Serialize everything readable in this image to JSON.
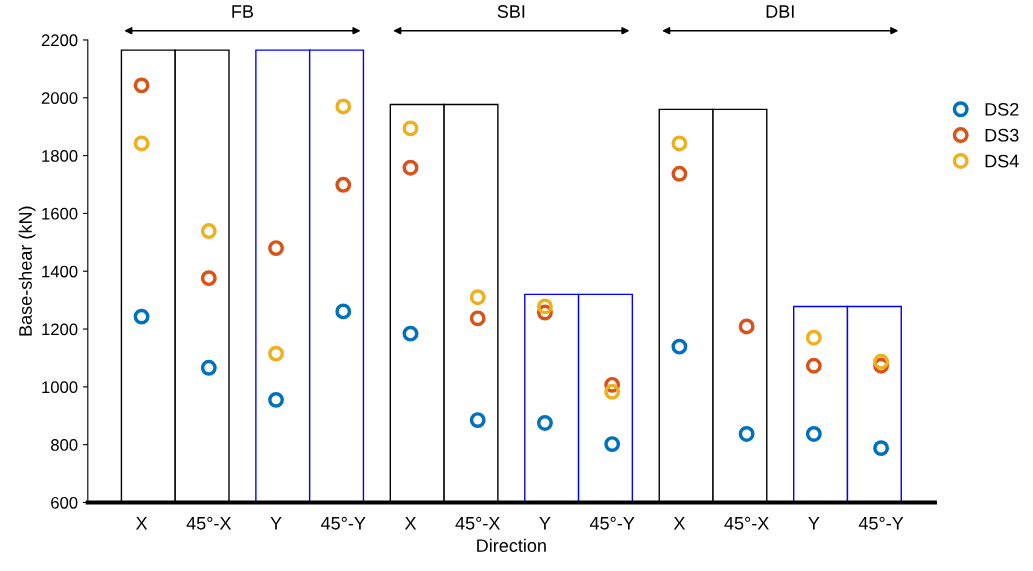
{
  "chart_data": {
    "type": "scatter",
    "xlabel": "Direction",
    "ylabel": "Base-shear (kN)",
    "categories": [
      "X",
      "45°-X",
      "Y",
      "45°-Y",
      "X",
      "45°-X",
      "Y",
      "45°-Y",
      "X",
      "45°-X",
      "Y",
      "45°-Y"
    ],
    "series": [
      {
        "name": "DS2",
        "color": "#0072bd",
        "values": [
          1243,
          1066,
          955,
          1261,
          1184,
          885,
          875,
          802,
          1139,
          837,
          837,
          788
        ]
      },
      {
        "name": "DS3",
        "color": "#d95319",
        "values": [
          2043,
          1376,
          1480,
          1699,
          1758,
          1237,
          1257,
          1007,
          1737,
          1209,
          1073,
          1073
        ]
      },
      {
        "name": "DS4",
        "color": "#edb120",
        "values": [
          1842,
          1539,
          1115,
          1970,
          1894,
          1310,
          1278,
          983,
          1842,
          null,
          1170,
          1087
        ]
      },
      {
        "type": "bar",
        "values": [
          2165,
          2165,
          2165,
          2165,
          1977,
          1977,
          1320,
          1320,
          1960,
          1960,
          1278,
          1278
        ],
        "colors": [
          "#000000",
          "#000000",
          "#0000ff",
          "#0000ff",
          "#000000",
          "#000000",
          "#0000ff",
          "#0000ff",
          "#000000",
          "#000000",
          "#0000ff",
          "#0000ff"
        ]
      }
    ],
    "annotations": [
      "FB",
      "SBI",
      "DBI"
    ],
    "ylim": [
      600,
      2200
    ],
    "yticks": [
      600,
      800,
      1000,
      1200,
      1400,
      1600,
      1800,
      2000,
      2200
    ],
    "marker": "circle",
    "legend": "top right",
    "grid": false
  }
}
